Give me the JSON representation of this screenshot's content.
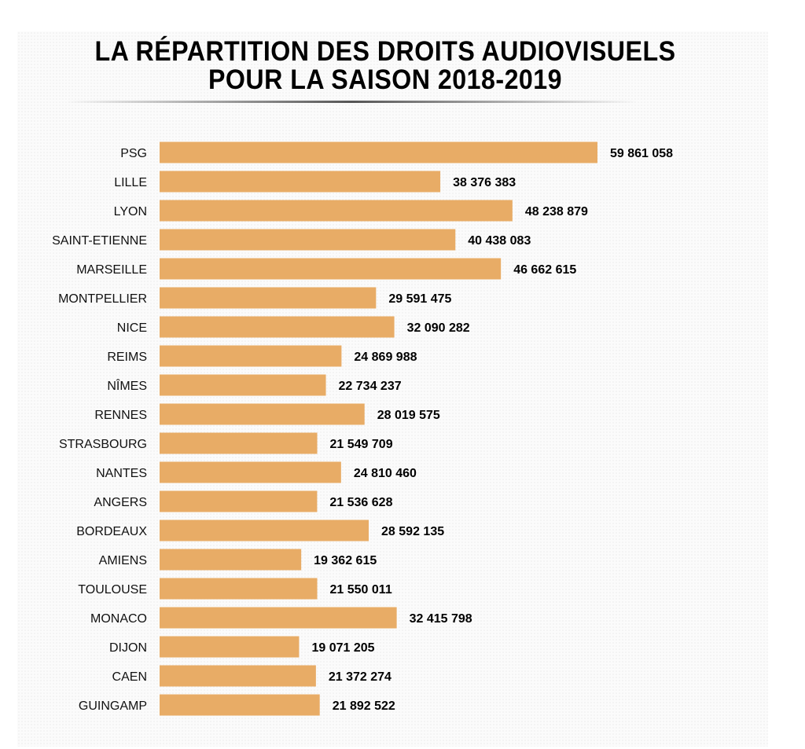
{
  "chart_data": {
    "type": "bar",
    "orientation": "horizontal",
    "title": [
      "LA RÉPARTITION DES DROITS AUDIOVISUELS",
      "POUR LA SAISON 2018-2019"
    ],
    "xlabel": "",
    "ylabel": "",
    "categories": [
      "PSG",
      "LILLE",
      "LYON",
      "SAINT-ETIENNE",
      "MARSEILLE",
      "MONTPELLIER",
      "NICE",
      "REIMS",
      "NÎMES",
      "RENNES",
      "STRASBOURG",
      "NANTES",
      "ANGERS",
      "BORDEAUX",
      "AMIENS",
      "TOULOUSE",
      "MONACO",
      "DIJON",
      "CAEN",
      "GUINGAMP"
    ],
    "values": [
      59861058,
      38376383,
      48238879,
      40438083,
      46662615,
      29591475,
      32090282,
      24869988,
      22734237,
      28019575,
      21549709,
      24810460,
      21536628,
      28592135,
      19362615,
      21550011,
      32415798,
      19071205,
      21372274,
      21892522
    ],
    "value_labels": [
      "59 861 058",
      "38 376 383",
      "48 238 879",
      "40 438 083",
      "46 662 615",
      "29 591 475",
      "32 090 282",
      "24 869 988",
      "22 734 237",
      "28 019 575",
      "21 549 709",
      "24 810 460",
      "21 536 628",
      "28 592 135",
      "19 362 615",
      "21 550 011",
      "32 415 798",
      "19 071 205",
      "21 372 274",
      "21 892 522"
    ],
    "xlim": [
      0,
      59861058
    ],
    "grid": false,
    "legend": "none",
    "bar_color": "#e8ac66"
  }
}
